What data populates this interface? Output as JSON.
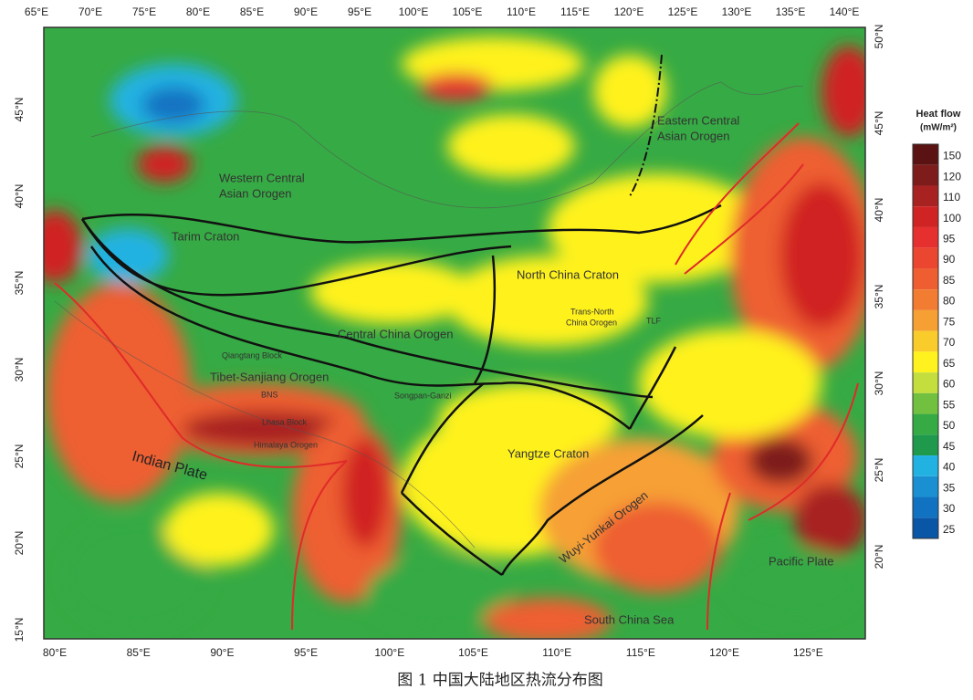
{
  "map": {
    "top_ticks": [
      "65°E",
      "70°E",
      "75°E",
      "80°E",
      "85°E",
      "90°E",
      "95°E",
      "100°E",
      "105°E",
      "110°E",
      "115°E",
      "120°E",
      "125°E",
      "130°E",
      "135°E",
      "140°E"
    ],
    "bottom_ticks": [
      "80°E",
      "85°E",
      "90°E",
      "95°E",
      "100°E",
      "105°E",
      "110°E",
      "115°E",
      "120°E",
      "125°E"
    ],
    "left_ticks": [
      "45°N",
      "40°N",
      "35°N",
      "30°N",
      "25°N",
      "20°N",
      "15°N"
    ],
    "right_ticks": [
      "50°N",
      "45°N",
      "40°N",
      "35°N",
      "30°N",
      "25°N",
      "20°N"
    ],
    "labels": {
      "wcao1": "Western Central",
      "wcao2": "Asian Orogen",
      "ecao1": "Eastern Central",
      "ecao2": "Asian Orogen",
      "tarim": "Tarim Craton",
      "ncc": "North China Craton",
      "tnco1": "Trans-North",
      "tnco2": "China Orogen",
      "tlf": "TLF",
      "cco": "Central China Orogen",
      "qiangtang": "Qiangtang Block",
      "tso": "Tibet-Sanjiang Orogen",
      "bns": "BNS",
      "songpan": "Songpan-Ganzi",
      "lhasa": "Lhasa Block",
      "himalaya": "Himalaya Orogen",
      "indian": "Indian Plate",
      "yangtze": "Yangtze Craton",
      "wuyi": "Wuyi-Yunkai Orogen",
      "pacific": "Pacific Plate",
      "scs": "South China Sea"
    },
    "legend": {
      "title": "Heat flow",
      "unit": "(mW/m²)",
      "levels": [
        150,
        120,
        110,
        100,
        95,
        90,
        85,
        80,
        75,
        70,
        65,
        60,
        55,
        50,
        45,
        40,
        35,
        30,
        25
      ],
      "colors": [
        "#5a1212",
        "#7e1c1c",
        "#a82222",
        "#d02424",
        "#e63030",
        "#ea4630",
        "#ee5e30",
        "#f27c32",
        "#f6a034",
        "#f9cc2c",
        "#fff21e",
        "#c4de3e",
        "#72c040",
        "#36aa44",
        "#1f9a4c",
        "#22b2e2",
        "#1a90d2",
        "#1272c2",
        "#0a56a6"
      ]
    },
    "caption": "图 1   中国大陆地区热流分布图"
  }
}
